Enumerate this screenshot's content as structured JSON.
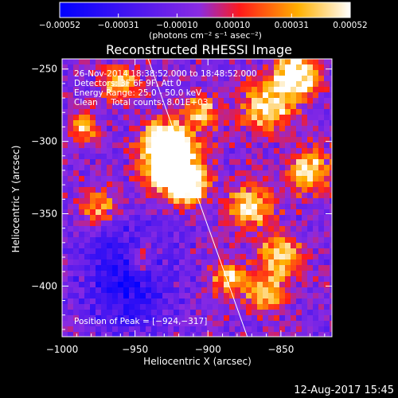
{
  "chart_data": {
    "type": "heatmap",
    "title": "Reconstructed RHESSI Image",
    "xlabel": "Heliocentric X (arcsec)",
    "ylabel": "Heliocentric Y (arcsec)",
    "xlim": [
      -1000,
      -815
    ],
    "ylim": [
      -435,
      -243
    ],
    "x_ticks": [
      -1000,
      -950,
      -900,
      -850
    ],
    "y_ticks": [
      -250,
      -300,
      -350,
      -400
    ],
    "x_tick_labels": [
      "−1000",
      "−950",
      "−900",
      "−850"
    ],
    "y_tick_labels": [
      "−250",
      "−300",
      "−350",
      "−400"
    ],
    "colorbar": {
      "min": -0.00052,
      "max": 0.00052,
      "ticks": [
        -0.00052,
        -0.00031,
        -0.0001,
        0.0001,
        0.00031,
        0.00052
      ],
      "tick_labels": [
        "−0.00052",
        "−0.00031",
        "−0.00010",
        "0.00010",
        "0.00031",
        "0.00052"
      ],
      "unit_label": "(photons cm⁻² s⁻¹ asec⁻²)"
    },
    "annotations": [
      "26-Nov-2014 18:38:52.000 to 18:48:52.000",
      "Detectors: 3F 6F 9F, Att 0",
      "Energy Range: 25.0 - 50.0 keV",
      "Clean     Total counts: 8.01E+03"
    ],
    "peak_label": "Position of Peak = [−924,−317]",
    "peak": [
      -924,
      -317
    ],
    "limb_line": [
      [
        -941,
        -243
      ],
      [
        -873,
        -435
      ]
    ],
    "footer": "12-Aug-2017 15:45",
    "colors": {
      "negative": "#0000ff",
      "zero": "#8a2be2",
      "mid": "#ff0000",
      "high": "#ffd000",
      "peak": "#ffffff"
    }
  }
}
